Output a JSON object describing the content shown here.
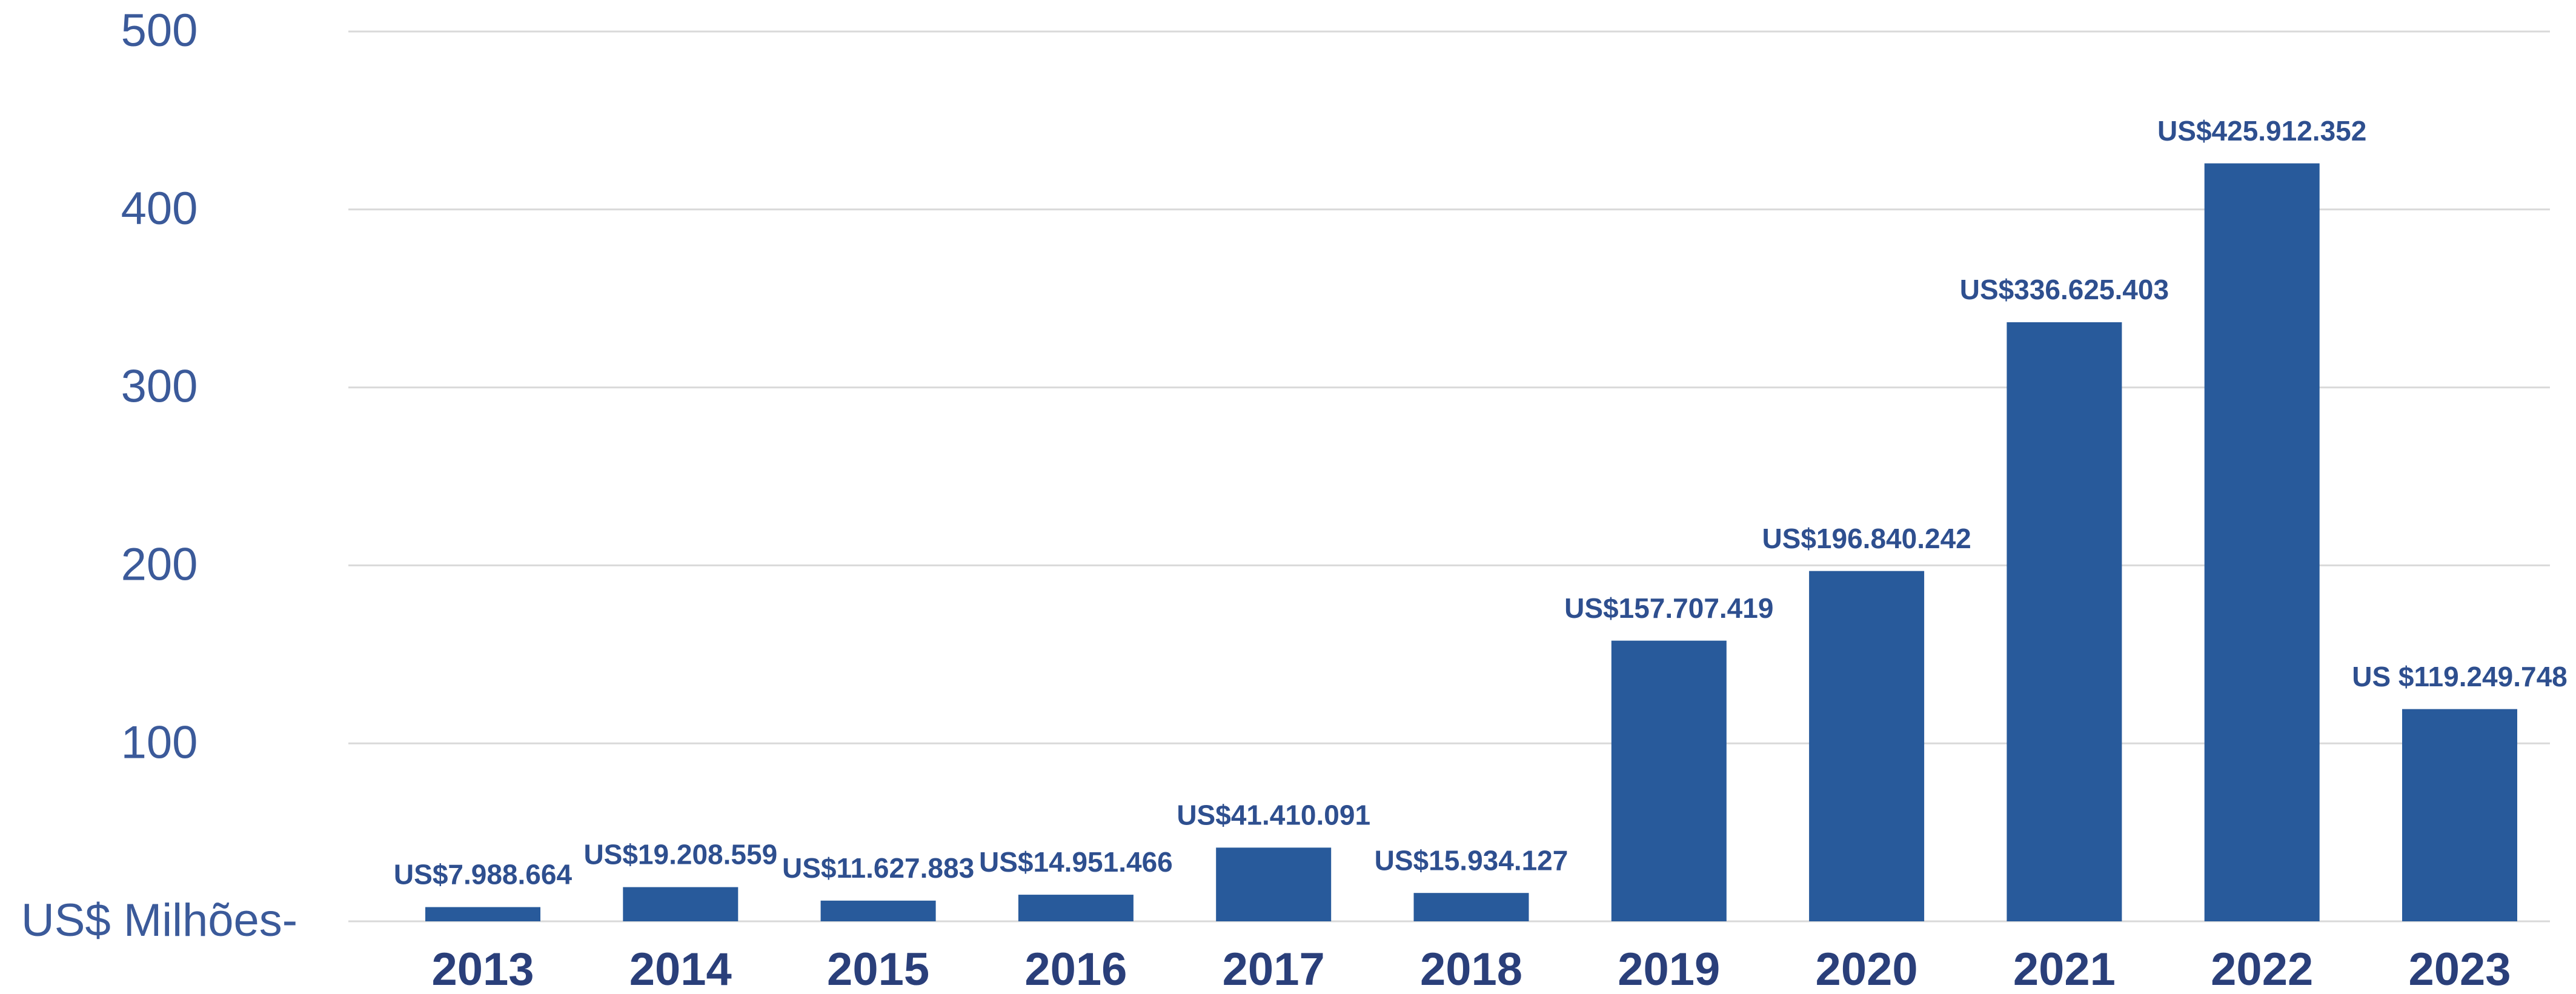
{
  "chart_data": {
    "type": "bar",
    "categories": [
      "2013",
      "2014",
      "2015",
      "2016",
      "2017",
      "2018",
      "2019",
      "2020",
      "2021",
      "2022",
      "2023"
    ],
    "values": [
      7.988664,
      19.208559,
      11.627883,
      14.951466,
      41.410091,
      15.934127,
      157.707419,
      196.840242,
      336.625403,
      425.912352,
      119.249748
    ],
    "value_labels": [
      "US$7.988.664",
      "US$19.208.559",
      "US$11.627.883",
      "US$14.951.466",
      "US$41.410.091",
      "US$15.934.127",
      "US$157.707.419",
      "US$196.840.242",
      "US$336.625.403",
      "US$425.912.352",
      "US $119.249.748"
    ],
    "color": "#285a9b",
    "ylim": [
      0,
      500
    ],
    "yticks": [
      {
        "value": 0,
        "label": "US$ Milhões-"
      },
      100,
      200,
      300,
      400,
      500
    ],
    "grid": true
  }
}
